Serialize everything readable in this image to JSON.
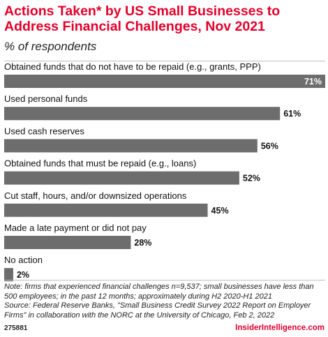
{
  "title": "Actions Taken* by US Small Businesses to Address Financial Challenges, Nov 2021",
  "subtitle": "% of respondents",
  "note": "Note: firms that experienced financial challenges n=9,537; small businesses have less than 500 employees; in the past 12 months; approximately during H2 2020-H1 2021",
  "source": "Source: Federal Reserve Banks, \"Small Business Credit Survey 2022 Report on Employer Firms\" in collaboration with the NORC at the University of Chicago, Feb 2, 2022",
  "chart_id": "275881",
  "brand": "InsiderIntelligence.com",
  "colors": {
    "bar": "#6d6d6d",
    "title": "#e4002b",
    "brand": "#e4002b"
  },
  "chart_data": {
    "type": "bar",
    "orientation": "horizontal",
    "categories": [
      "Obtained funds that do not have to be repaid (e.g., grants, PPP)",
      "Used personal funds",
      "Used cash reserves",
      "Obtained funds that must be repaid (e.g., loans)",
      "Cut staff, hours, and/or downsized operations",
      "Made a late payment or did not pay",
      "No action"
    ],
    "values": [
      71,
      61,
      56,
      52,
      45,
      28,
      2
    ],
    "value_labels": [
      "71%",
      "61%",
      "56%",
      "52%",
      "45%",
      "28%",
      "2%"
    ],
    "xlim": [
      0,
      71
    ],
    "grid": false,
    "legend": "none"
  }
}
